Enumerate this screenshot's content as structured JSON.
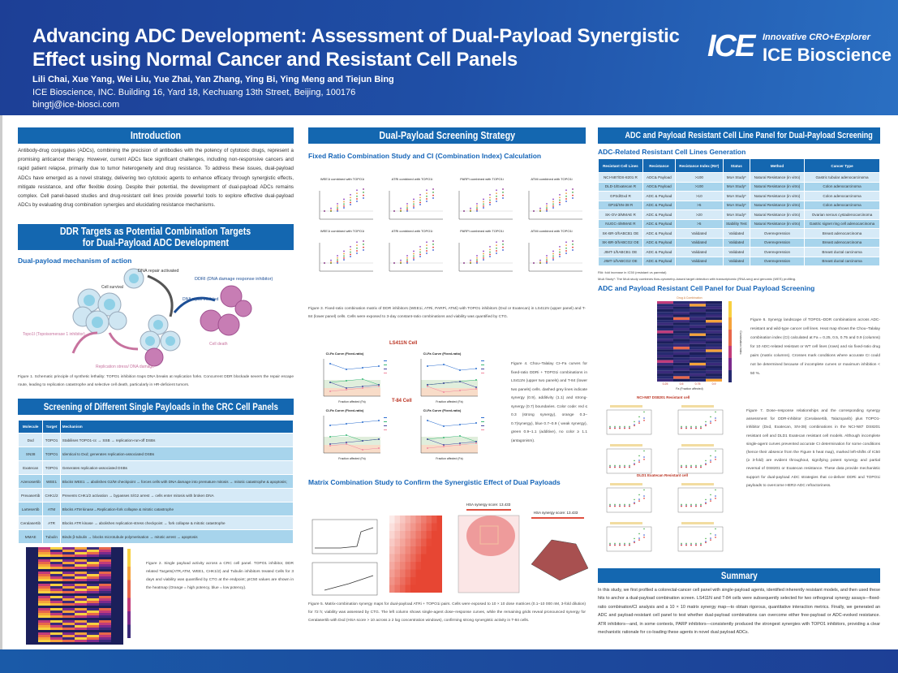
{
  "header": {
    "title": "Advancing ADC Development: Assessment of Dual-Payload Synergistic Effect using Normal Cancer and Resistant Cell Panels",
    "authors": "Lili Chai, Xue Yang, Wei Liu, Yue Zhai, Yan Zhang, Ying Bi, Ying Meng and Tiejun Bing",
    "affiliation": "ICE Bioscience, INC. Building 16, Yard 18, Kechuang 13th Street, Beijing, 100176",
    "email": "bingtj@ice-biosci.com",
    "logo_tagline": "Innovative CRO+Explorer",
    "logo_name": "ICE Bioscience",
    "logo_mark": "ICE"
  },
  "intro": {
    "title": "Introduction",
    "text": "Antibody-drug conjugates (ADCs), combining the precision of antibodies with the potency of cytotoxic drugs, represent a promising anticancer therapy. However, current ADCs face significant challenges, including non-responsive cancers and rapid patient relapse, primarily due to tumor heterogeneity and drug resistance. To address these issues, dual-payload ADCs have emerged as a novel strategy, delivering two cytotoxic agents to enhance efficacy through synergistic effects, mitigate resistance, and offer flexible dosing. Despite their potential, the development of dual-payload ADCs remains complex. Cell panel-based studies and drug-resistant cell lines provide powerful tools to explore effective dual-payload ADCs by evaluating drug combination synergies and elucidating resistance mechanisms."
  },
  "ddr": {
    "title_line1": "DDR Targets as Potential Combination Targets",
    "title_line2": "for Dual-Payload ADC Development",
    "subtitle": "Dual-payload mechanism of action",
    "labels": {
      "repair_activated": "DNA repair activated",
      "ddri": "DDRI (DNA damage response inhibitor)",
      "cell_survival": "Cell survival",
      "repair_inhibited": "DNA repair inhibited",
      "topo1i": "Topo1I (Topoisomerase 1 inhibitor)",
      "replication_stress": "Replication stress/ DNA damage",
      "cell_death": "Cell death"
    },
    "caption": "Figure 1. Schematic principle of synthetic lethality: TOPO1 inhibition traps DNA breaks at replication forks. Concurrent DDR blockade severs the repair escape route, leading to replication catastrophe and selective cell death, particularly in HR-deficient tumors."
  },
  "screening": {
    "title": "Screening of Different Single Payloads in the CRC Cell Panels",
    "columns": [
      "Molecule",
      "Target",
      "Mechanism"
    ],
    "rows": [
      [
        "Dxd",
        "TOPO1",
        "Stabilises TOPO1-cc → SSB → replication-run-off DSBs"
      ],
      [
        "SN38",
        "TOPO1",
        "Identical to Dxd; generates replication-associated DSBs"
      ],
      [
        "Exatecan",
        "TOPO1",
        "Generates replication-associated DSBs"
      ],
      [
        "Azenosertib",
        "WEE1",
        "Blocks WEE1 → abolishes G2/M checkpoint → forces cells with DNA damage into premature mitosis → mitotic catastrophe & apoptosis;"
      ],
      [
        "Prexasertib",
        "CHK1/2",
        "Prevents CHK1/2 activation → bypasses S/G2 arrest → cells enter mitosis with broken DNA"
      ],
      [
        "Lartesertib",
        "ATM",
        "Blocks ATM kinase→Replication-fork collapse & mitotic catastrophe"
      ],
      [
        "Ceralasertib",
        "ATR",
        "Blocks ATR kinase → abolishes replication-stress checkpoint → fork collapse & mitotic catastrophe"
      ],
      [
        "MMAE",
        "Tubulin",
        "Binds β-tubulin → blocks microtubule polymerisation → mitotic arrest → apoptosis"
      ]
    ],
    "caption": "Figure 2. Single payload activity across a CRC cell panel. TOPO1 inhibitor, DDR related Targets(ATR,ATM, WEE1, CHK1/2) and Tubulin inhibitors treated Cells for 3 days and viability was quantified by CTG at the endpoint; pIC50 values are shown in the heatmap (Orange = high potency, blue = low potency)."
  },
  "strategy": {
    "title": "Dual-Payload Screening Strategy",
    "subtitle1": "Fixed Ratio Combination Study and CI (Combination Index) Calculation",
    "plot_titles": [
      "WEE1i combined with TOPO1i",
      "ATRi combined with TOPO1i",
      "PARPi combined with TOPO1i",
      "ATMi combined with TOPO1i"
    ],
    "caption3": "Figure 3. Fixed-ratio combination matrix of DDR inhibitors (WEE1i, ATRi, PARPi, ATMi) with TOPO1 inhibitors (Dxd or Exatecan) in LS411N (upper panel) and T-84 (lower panel) cells. Cells were exposed to 3-day constant-ratio combinations and viability was quantified by CTG.",
    "cell1": "LS411N Cell",
    "cell2": "T-84 Cell",
    "ci_title": "CI-Fa Curve (Fixed-ratio)",
    "ci_xlabel": "Fraction affected (Fa)",
    "caption4": "Figure 4. Chou–Talalay CI–Fa curves for fixed-ratio DDRi + TOPO1i combinations in LS411N (upper two panels) and T-84 (lower two panels) cells. dashed grey lines indicate synergy (0.9), additivity (1.1) and strong-synergy (0.7) boundaries. Color code: red ≤ 0.3 (strong synergy), orange 0.3–0.7(synergy), blue 0.7–0.9 ( weak synergy), green 0.9–1.1 (additive), no color ≥ 1.1 (antagonism).",
    "subtitle2": "Matrix Combination Study to Confirm the Synergistic Effect of Dual Payloads",
    "hsa1": "HSA synergy score: 13.433",
    "hsa2": "HSA synergy score: 13.433",
    "caption5": "Figure 5. Matrix-combination synergy maps for dual-payload ATRi + TOPO1i pairs. Cells were exposed to 10 × 10 dose matrices (0.1–10 000 nM, 3-fold dilution) for 72 h; viability was assessed by CTG. The left column shows single-agent dose–response curves, while the remaining grids reveal pronounced synergy for Ceralasertib with Dxd (HSA score > 10 across ≥ 2 log concentration windows), confirming strong synergistic activity in T-84 cells."
  },
  "resistant": {
    "title": "ADC and Payload Resistant Cell Line Panel for Dual-Payload Screening",
    "subtitle1": "ADC-Related Resistant Cell Lines Generation",
    "columns": [
      "Resistant Cell Lines",
      "Resistance",
      "Resistance Index (RI#)",
      "Status",
      "Method",
      "Cancer Type"
    ],
    "rows": [
      [
        "NCI-N87/DS-8201 R",
        "ADC& Payload",
        ">100",
        "MoA Study*",
        "Natural Resistance (in vitro)",
        "Gastric tubular adenocarcinoma"
      ],
      [
        "DLD-1/Exatecan R",
        "ADC& Payload",
        ">100",
        "MoA Study*",
        "Natural Resistance (in vitro)",
        "Colon adenocarcinoma"
      ],
      [
        "GP2d/Dxd R",
        "ADC & Payload",
        ">10",
        "MoA Study*",
        "Natural Resistance (in vitro)",
        "Colon adenocarcinoma"
      ],
      [
        "GP2d/SN-38 R",
        "ADC & Payload",
        ">5",
        "MoA Study*",
        "Natural Resistance (in vitro)",
        "Colon adenocarcinoma"
      ],
      [
        "SK-OV-3/MMAE R",
        "ADC & Payload",
        ">20",
        "MoA Study*",
        "Natural Resistance (in vitro)",
        "Ovarian serous cystadenocarcinoma"
      ],
      [
        "NUGC-4/MMAE R",
        "ADC & Payload",
        ">5",
        "Stability Test",
        "Natural Resistance (in vitro)",
        "Gastric signet ring cell adenocarcinoma"
      ],
      [
        "SK-BR-3/hABCB1 OE",
        "ADC & Payload",
        "Validated",
        "Validated",
        "Overexpression",
        "Breast adenocarcinoma"
      ],
      [
        "SK-BR-3/hABCG2 OE",
        "ADC & Payload",
        "Validated",
        "Validated",
        "Overexpression",
        "Breast adenocarcinoma"
      ],
      [
        "JIMT-1/hABCB1 OE",
        "ADC & Payload",
        "Validated",
        "Validated",
        "Overexpression",
        "Breast ductal carcinoma"
      ],
      [
        "JIMT-1/hABCG2 OE",
        "ADC & Payload",
        "Validated",
        "Validated",
        "Overexpression",
        "Breast ductal carcinoma"
      ]
    ],
    "note1": "RI#: fold increase in IC50 (resistant vs parental)",
    "note2": "MoA Study*: The MoA study combines flow-cytometry–based target detection with transcriptomic (RNA-seq) and genomic (WES) profiling.",
    "subtitle2": "ADC and Payload Resistant Cell Panel for Dual Payload Screening",
    "heat_xlabel": "Fa (Fraction affected)",
    "heat_legend": "Combination Index",
    "heat_top": "Drug A   Combination",
    "fa_ticks": [
      "0.25",
      "0.5",
      "0.75",
      "0.9"
    ],
    "caption6": "Figure 6. Synergy landscape of TOPO1–DDR combinations across ADC-resistant and wild-type cancer cell lines. Heat map shows the Chou–Talalay combination index (CI) calculated at Fa = 0.25, 0.5, 0.75 and 0.9 (columns) for 10 ADC-related resistant or WT cell lines (rows) and six fixed-ratio drug pairs (matrix columns). Crosses mark conditions where accurate CI could not be determined because of incomplete curves or maximum inhibition < 50 %.",
    "panel1": "NCI-N87 DS8201 Resistant cell",
    "panel2": "DLD1 Exatecan Resistant cell",
    "caption7": "Figure 7. Dose–response relationships and the corresponding synergy assessment for DDR-inhibitor (Ceralasertib, Talazoparib) plus TOPO1-inhibitor (Dxd, Exatecan, SN-38) combinations in the NCI-N87 DS8201 resistant cell and DLD1 Exatecan resistant cell models. Although incomplete single-agent curves prevented accurate CI determination for some conditions (hence their absence from the Figure 5 heat map), marked left-shifts of IC50 (≥ 3-fold) are evident throughout, signifying potent synergy and partial reversal of DS8201 or Exatecan resistance. These data provide mechanistic support for dual-payload ADC strategies that co-deliver DDRi and TOPO1i payloads to overcome HER2-ADC refractoriness."
  },
  "summary": {
    "title": "Summary",
    "text": "In this study, we first profiled a colorectal-cancer cell panel with single-payload agents, identified inherently resistant models, and then used these hits to anchor a dual-payload combination screen. LS411N and T-84 cells were subsequently selected for two orthogonal synergy assays—fixed-ratio combination/CI analysis and a 10 × 10 matrix synergy map—to obtain rigorous, quantitative interaction metrics. Finally, we generated an ADC and payload-resistant cell panel to test whether dual-payload combinations can overcome either free-payload or ADC-evoked resistance. ATR inhibitors—and, in some contexts, PARP inhibitors—consistently produced the strongest synergies with TOPO1 inhibitors, providing a clear mechanistic rationale for co-loading these agents in novel dual payload ADCs."
  },
  "colors": {
    "primary": "#1467b0",
    "header_dark": "#1d3f96",
    "row_light": "#d6eaf7",
    "row_dark": "#a7d4ec",
    "subtitle": "#1565b8"
  }
}
